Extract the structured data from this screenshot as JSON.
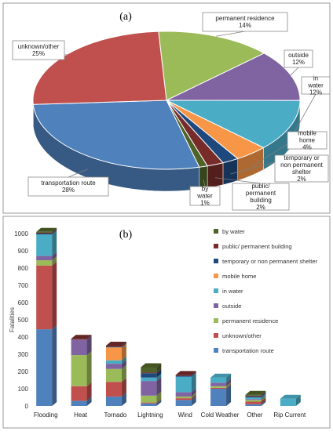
{
  "chart_data": [
    {
      "type": "pie",
      "panel_label": "(a)",
      "slices": [
        {
          "name": "permanent residence",
          "value": 14,
          "label": "14%",
          "color": "#9bbb59"
        },
        {
          "name": "outside",
          "value": 12,
          "label": "12%",
          "color": "#8064a2"
        },
        {
          "name": "in water",
          "value": 12,
          "label": "12%",
          "color": "#4bacc6"
        },
        {
          "name": "mobile home",
          "value": 4,
          "label": "4%",
          "color": "#f79646"
        },
        {
          "name": "temporary or non permanent shelter",
          "value": 2,
          "label": "2%",
          "color": "#1f497d"
        },
        {
          "name": "public/ permanent building",
          "value": 2,
          "label": "2%",
          "color": "#772c2a"
        },
        {
          "name": "by water",
          "value": 1,
          "label": "1%",
          "color": "#4f6228"
        },
        {
          "name": "transportation route",
          "value": 28,
          "label": "28%",
          "color": "#4f81bd"
        },
        {
          "name": "unknown/other",
          "value": 25,
          "label": "25%",
          "color": "#c0504d"
        }
      ]
    },
    {
      "type": "bar",
      "stacked": true,
      "panel_label": "(b)",
      "ylabel": "Fatalities",
      "ylim": [
        0,
        1000
      ],
      "yticks": [
        0,
        100,
        200,
        300,
        400,
        500,
        600,
        700,
        800,
        900,
        1000
      ],
      "categories": [
        "Flooding",
        "Heat",
        "Tornado",
        "Lightning",
        "Wind",
        "Cold Weather",
        "Other",
        "Rip Current"
      ],
      "legend_position": "right",
      "series": [
        {
          "name": "transportation route",
          "color": "#4f81bd",
          "values": [
            445,
            30,
            55,
            15,
            35,
            100,
            10,
            0
          ]
        },
        {
          "name": "unknown/other",
          "color": "#c0504d",
          "values": [
            370,
            85,
            85,
            5,
            10,
            5,
            15,
            0
          ]
        },
        {
          "name": "permanent residence",
          "color": "#9bbb59",
          "values": [
            30,
            180,
            75,
            40,
            10,
            10,
            10,
            0
          ]
        },
        {
          "name": "outside",
          "color": "#8064a2",
          "values": [
            25,
            90,
            30,
            85,
            25,
            20,
            5,
            0
          ]
        },
        {
          "name": "in water",
          "color": "#4bacc6",
          "values": [
            125,
            0,
            20,
            20,
            90,
            30,
            10,
            42
          ]
        },
        {
          "name": "mobile home",
          "color": "#f79646",
          "values": [
            0,
            0,
            75,
            0,
            0,
            0,
            0,
            0
          ]
        },
        {
          "name": "temporary or non permanent shelter",
          "color": "#1f497d",
          "values": [
            5,
            0,
            5,
            25,
            5,
            0,
            5,
            0
          ]
        },
        {
          "name": "public/ permanent building",
          "color": "#772c2a",
          "values": [
            5,
            5,
            5,
            5,
            5,
            0,
            5,
            0
          ]
        },
        {
          "name": "by water",
          "color": "#4f6228",
          "values": [
            5,
            0,
            0,
            30,
            0,
            0,
            5,
            0
          ]
        }
      ],
      "legend_order": [
        "by water",
        "public/ permanent building",
        "temporary or non permanent shelter",
        "mobile home",
        "in water",
        "outside",
        "permanent residence",
        "unknown/other",
        "transportation route"
      ]
    }
  ]
}
